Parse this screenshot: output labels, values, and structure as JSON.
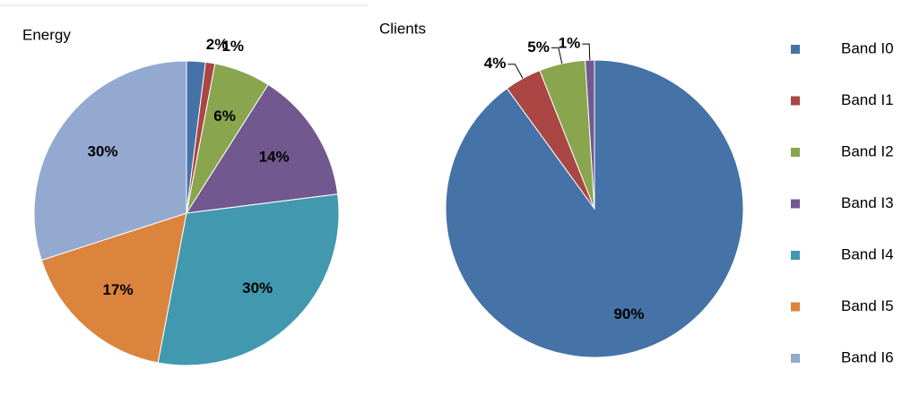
{
  "chart_data": [
    {
      "type": "pie",
      "title": "Energy",
      "values": [
        2,
        1,
        6,
        14,
        30,
        17,
        30
      ],
      "value_labels": [
        "2%",
        "1%",
        "6%",
        "14%",
        "30%",
        "17%",
        "30%"
      ],
      "colors": [
        "#4572a7",
        "#aa4643",
        "#89a54e",
        "#71588f",
        "#4198af",
        "#db843d",
        "#93a9cf"
      ]
    },
    {
      "type": "pie",
      "title": "Clients",
      "categories": [
        "Band I0",
        "Band I1",
        "Band I2",
        "Band I3",
        "Band I4",
        "Band I5",
        "Band I6"
      ],
      "values": [
        90,
        4,
        5,
        1,
        0,
        0,
        0
      ],
      "value_labels": [
        "90%",
        "4%",
        "5%",
        "1%",
        null,
        null,
        null
      ],
      "colors": [
        "#4572a7",
        "#aa4643",
        "#89a54e",
        "#71588f",
        "#4198af",
        "#db843d",
        "#93a9cf"
      ],
      "legend": "right"
    }
  ]
}
